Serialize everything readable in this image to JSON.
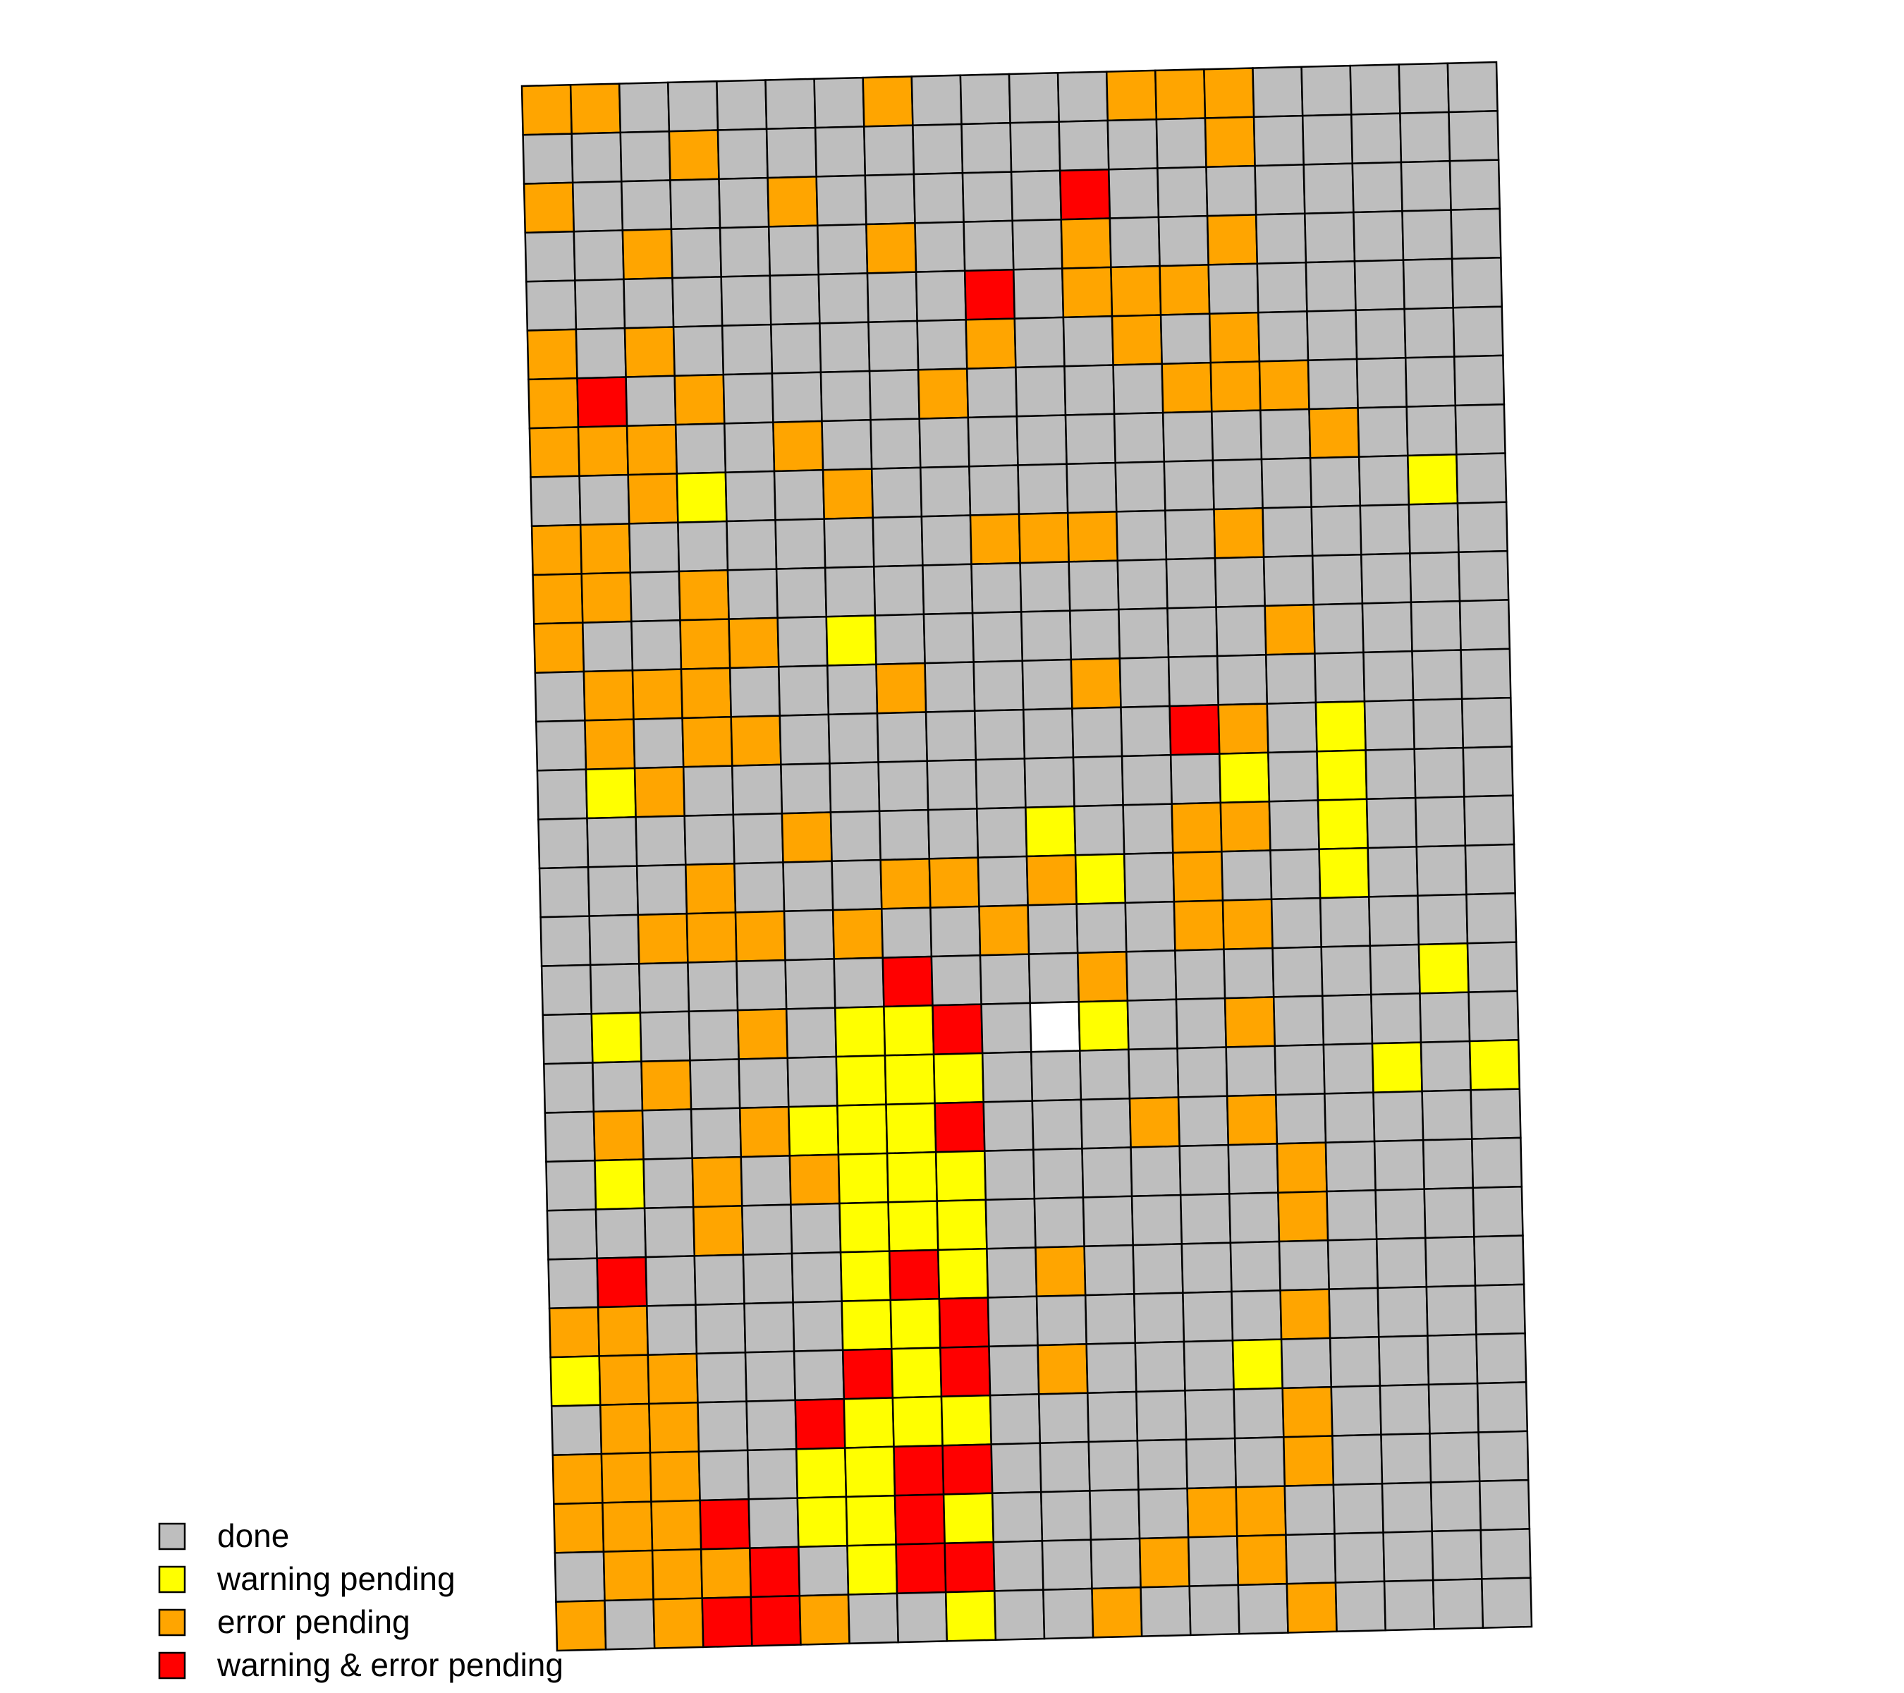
{
  "chart_data": {
    "type": "heatmap",
    "grid": {
      "rows": 32,
      "cols": 20
    },
    "categories": [
      "done",
      "warning pending",
      "error pending",
      "warning & error pending"
    ],
    "colors": {
      "U": "#ffffff",
      "G": "#bebebe",
      "Y": "#ffff00",
      "O": "#ffa500",
      "R": "#ff0000",
      "border": "#000000"
    },
    "legend": {
      "position": "bottom-left",
      "items": [
        {
          "code": "G",
          "label": "done"
        },
        {
          "code": "Y",
          "label": "warning pending"
        },
        {
          "code": "O",
          "label": "error pending"
        },
        {
          "code": "R",
          "label": "warning & error pending"
        }
      ]
    },
    "cells": [
      "OOGGGGGOGGGGOOOGGGGG",
      "GGGOGGGGGGGGGGOGGGGG",
      "OGGGGOGGGGGRGGGGGGGG",
      "GGOGGGGOGGGOGGOGGGGG",
      "GGGGGGGGGRGOOOGGGGGG",
      "OGOGGGGGGOGGOGOGGGGG",
      "ORGOGGGGOGGGGOOOGGGG",
      "OOOGGOGGGGGGGGGGOGGG",
      "GGOYGGOGGGGGGGGGGGYG",
      "OOGGGGGGGOOOGGOGGGGG",
      "OOGOGGGGGGGGGGGGGGGG",
      "OGGOOGYGGGGGGGGOGGGG",
      "GOOOGGGOGGGOGGGGGGGG",
      "GOGOOGGGGGGGGROGYGGG",
      "GYOGGGGGGGGGGGYGYGGG",
      "GGGGGOGGGGYGGOOGYGGG",
      "GGGOGGGOOGOYGOGGYGGG",
      "GGOOOGOGGOGGGOOGGGGG",
      "GGGGGGGRGGGOGGGGGGYG",
      "GYGGOGYYRGUYGGOGGGGG",
      "GGOGGGYYYGGGGGGGGYGY",
      "GOGGOYYYRGGGOGOGGGGG",
      "GYGOGOYYYGGGGGGOGGGG",
      "GGGOGGYYYGGGGGGOGGGG",
      "GRGGGGYRYGOGGGGGGGGG",
      "OOGGGGYYRGGGGGGOGGGG",
      "YOOGGGRYRGOGGGYGGGGG",
      "GOOGGRYYYGGGGGGOGGGG",
      "OOOGGYYRRGGGGGGOGGGG",
      "OOORGYYRYGGGGOOGGGGG",
      "GOOORGYRRGGGOGOGGGGG",
      "OGORROGGYGGOGGGOGGGG"
    ]
  }
}
